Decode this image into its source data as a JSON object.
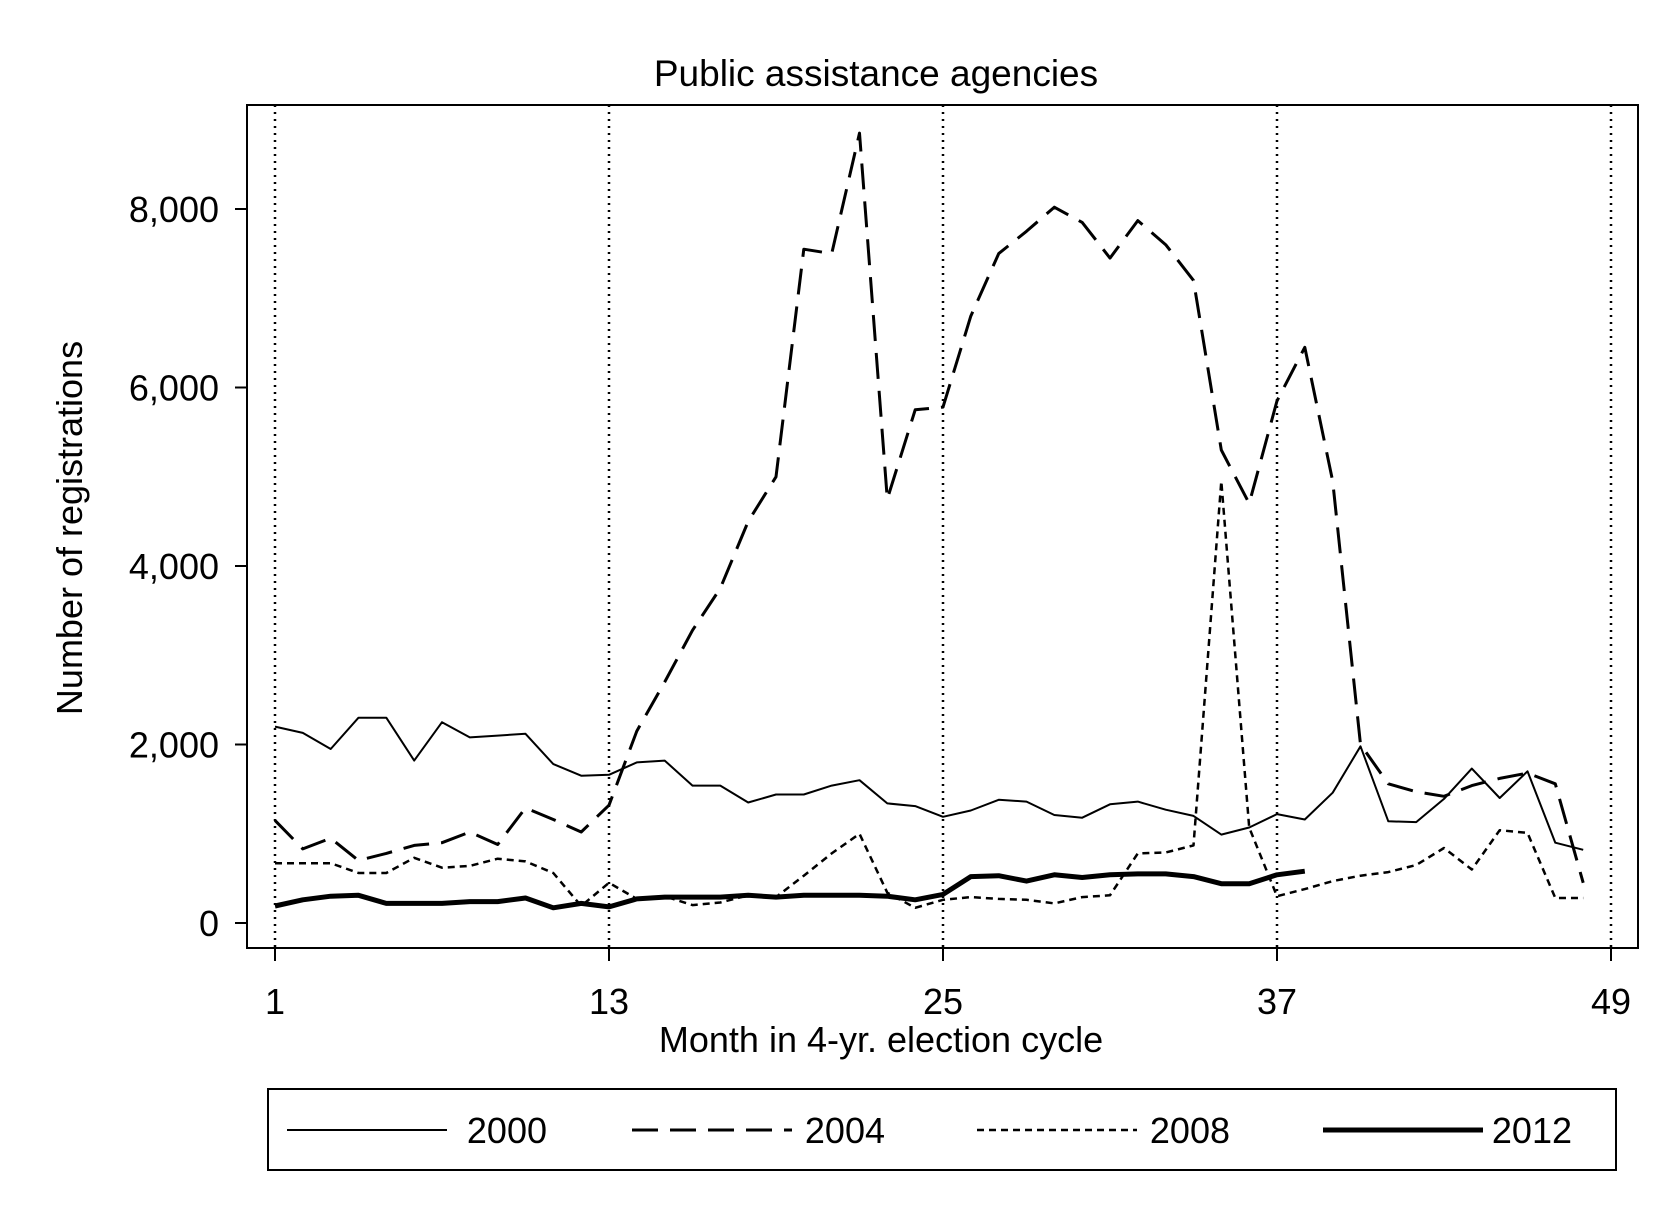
{
  "chart_data": {
    "type": "line",
    "title": "Public assistance agencies",
    "xlabel": "Month in 4-yr. election cycle",
    "ylabel": "Number of registrations",
    "xlim": [
      1,
      49
    ],
    "ylim": [
      -300,
      9200
    ],
    "xticks": [
      1,
      13,
      25,
      37,
      49
    ],
    "xtick_labels": [
      "1",
      "13",
      "25",
      "37",
      "49"
    ],
    "yticks": [
      0,
      2000,
      4000,
      6000,
      8000
    ],
    "ytick_labels": [
      "0",
      "2,000",
      "4,000",
      "6,000",
      "8,000"
    ],
    "vertical_reference_lines": [
      1,
      13,
      25,
      37,
      49
    ],
    "grid": false,
    "legend_position": "bottom",
    "series": [
      {
        "name": "2000",
        "style": "solid-thin",
        "x": [
          1,
          2,
          3,
          4,
          5,
          6,
          7,
          8,
          9,
          10,
          11,
          12,
          13,
          14,
          15,
          16,
          17,
          18,
          19,
          20,
          21,
          22,
          23,
          24,
          25,
          26,
          27,
          28,
          29,
          30,
          31,
          32,
          33,
          34,
          35,
          36,
          37,
          38,
          39,
          40,
          41,
          42,
          43,
          44,
          45,
          46,
          47,
          48
        ],
        "values": [
          2200,
          2130,
          1950,
          2300,
          2300,
          1820,
          2250,
          2080,
          2100,
          2120,
          1780,
          1650,
          1660,
          1800,
          1820,
          1540,
          1540,
          1350,
          1440,
          1440,
          1540,
          1600,
          1340,
          1310,
          1190,
          1260,
          1380,
          1360,
          1210,
          1180,
          1330,
          1360,
          1270,
          1200,
          990,
          1070,
          1220,
          1160,
          1460,
          1980,
          1140,
          1130,
          1390,
          1730,
          1400,
          1700,
          900,
          820
        ]
      },
      {
        "name": "2004",
        "style": "long-dash",
        "x": [
          1,
          2,
          3,
          4,
          5,
          6,
          7,
          8,
          9,
          10,
          11,
          12,
          13,
          14,
          15,
          16,
          17,
          18,
          19,
          20,
          21,
          22,
          23,
          24,
          25,
          26,
          27,
          28,
          29,
          30,
          31,
          32,
          33,
          34,
          35,
          36,
          37,
          38,
          39,
          40,
          41,
          42,
          43,
          44,
          45,
          46,
          47,
          48
        ],
        "values": [
          1150,
          830,
          950,
          700,
          780,
          870,
          900,
          1020,
          880,
          1290,
          1160,
          1020,
          1320,
          2150,
          2700,
          3280,
          3750,
          4500,
          5000,
          7550,
          7500,
          8850,
          4750,
          5750,
          5780,
          6800,
          7500,
          7750,
          8020,
          7850,
          7450,
          7870,
          7600,
          7200,
          5300,
          4700,
          5850,
          6450,
          4950,
          2000,
          1560,
          1470,
          1420,
          1540,
          1620,
          1680,
          1560,
          450
        ]
      },
      {
        "name": "2008",
        "style": "short-dash",
        "x": [
          1,
          2,
          3,
          4,
          5,
          6,
          7,
          8,
          9,
          10,
          11,
          12,
          13,
          14,
          15,
          16,
          17,
          18,
          19,
          20,
          21,
          22,
          23,
          24,
          25,
          26,
          27,
          28,
          29,
          30,
          31,
          32,
          33,
          34,
          35,
          36,
          37,
          38,
          39,
          40,
          41,
          42,
          43,
          44,
          45,
          46,
          47,
          48
        ],
        "values": [
          670,
          670,
          670,
          560,
          560,
          730,
          620,
          640,
          720,
          690,
          560,
          190,
          450,
          270,
          300,
          200,
          230,
          310,
          290,
          530,
          780,
          1000,
          340,
          170,
          260,
          290,
          270,
          260,
          220,
          290,
          310,
          780,
          790,
          870,
          4950,
          1070,
          300,
          380,
          470,
          530,
          570,
          650,
          840,
          600,
          1040,
          1010,
          280,
          280
        ]
      },
      {
        "name": "2012",
        "style": "solid-thick",
        "x": [
          1,
          2,
          3,
          4,
          5,
          6,
          7,
          8,
          9,
          10,
          11,
          12,
          13,
          14,
          15,
          16,
          17,
          18,
          19,
          20,
          21,
          22,
          23,
          24,
          25,
          26,
          27,
          28,
          29,
          30,
          31,
          32,
          33,
          34,
          35,
          36,
          37,
          38
        ],
        "values": [
          190,
          260,
          300,
          310,
          220,
          220,
          220,
          240,
          240,
          280,
          170,
          220,
          180,
          270,
          290,
          290,
          290,
          310,
          290,
          310,
          310,
          310,
          300,
          260,
          320,
          520,
          530,
          470,
          540,
          510,
          540,
          550,
          550,
          520,
          440,
          440,
          540,
          580
        ]
      }
    ]
  }
}
